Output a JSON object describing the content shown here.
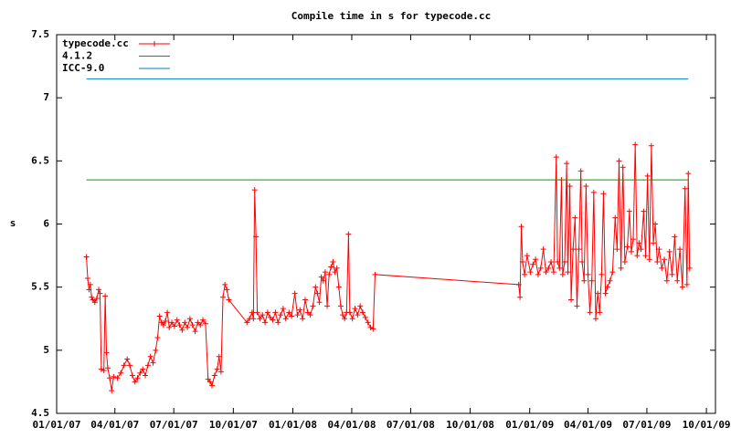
{
  "chart_data": {
    "type": "line",
    "title": "Compile time in s for typecode.cc",
    "y_label": "s",
    "xlim": [
      "2007-01-01",
      "2009-10-15"
    ],
    "ylim": [
      4.5,
      7.5
    ],
    "xticks": [
      {
        "value": "2007-01-01",
        "label": "01/01/07"
      },
      {
        "value": "2007-04-01",
        "label": "04/01/07"
      },
      {
        "value": "2007-07-01",
        "label": "07/01/07"
      },
      {
        "value": "2007-10-01",
        "label": "10/01/07"
      },
      {
        "value": "2008-01-01",
        "label": "01/01/08"
      },
      {
        "value": "2008-04-01",
        "label": "04/01/08"
      },
      {
        "value": "2008-07-01",
        "label": "07/01/08"
      },
      {
        "value": "2008-10-01",
        "label": "10/01/08"
      },
      {
        "value": "2009-01-01",
        "label": "01/01/09"
      },
      {
        "value": "2009-04-01",
        "label": "04/01/09"
      },
      {
        "value": "2009-07-01",
        "label": "07/01/09"
      },
      {
        "value": "2009-10-01",
        "label": "10/01/09"
      }
    ],
    "yticks": [
      4.5,
      5,
      5.5,
      6,
      6.5,
      7,
      7.5
    ],
    "legend": "top-left",
    "series": [
      {
        "name": "typecode.cc",
        "color": "#ff0000",
        "markers": true,
        "x": [
          "2007-02-16",
          "2007-02-18",
          "2007-02-20",
          "2007-02-22",
          "2007-02-24",
          "2007-02-26",
          "2007-03-01",
          "2007-03-04",
          "2007-03-07",
          "2007-03-09",
          "2007-03-11",
          "2007-03-15",
          "2007-03-17",
          "2007-03-19",
          "2007-03-21",
          "2007-03-24",
          "2007-03-27",
          "2007-03-30",
          "2007-04-05",
          "2007-04-10",
          "2007-04-15",
          "2007-04-20",
          "2007-04-24",
          "2007-04-28",
          "2007-05-02",
          "2007-05-06",
          "2007-05-10",
          "2007-05-14",
          "2007-05-18",
          "2007-05-22",
          "2007-05-26",
          "2007-05-30",
          "2007-06-03",
          "2007-06-06",
          "2007-06-09",
          "2007-06-12",
          "2007-06-15",
          "2007-06-18",
          "2007-06-21",
          "2007-06-24",
          "2007-06-28",
          "2007-07-02",
          "2007-07-06",
          "2007-07-10",
          "2007-07-14",
          "2007-07-18",
          "2007-07-22",
          "2007-07-26",
          "2007-07-30",
          "2007-08-03",
          "2007-08-07",
          "2007-08-11",
          "2007-08-15",
          "2007-08-19",
          "2007-08-23",
          "2007-08-26",
          "2007-08-29",
          "2007-09-02",
          "2007-09-06",
          "2007-09-09",
          "2007-09-12",
          "2007-09-15",
          "2007-09-18",
          "2007-09-21",
          "2007-09-24",
          "2007-10-22",
          "2007-10-26",
          "2007-10-30",
          "2007-11-01",
          "2007-11-03",
          "2007-11-05",
          "2007-11-07",
          "2007-11-11",
          "2007-11-15",
          "2007-11-19",
          "2007-11-23",
          "2007-11-27",
          "2007-12-01",
          "2007-12-05",
          "2007-12-09",
          "2007-12-13",
          "2007-12-17",
          "2007-12-21",
          "2007-12-26",
          "2007-12-30",
          "2008-01-04",
          "2008-01-08",
          "2008-01-12",
          "2008-01-16",
          "2008-01-20",
          "2008-01-24",
          "2008-01-28",
          "2008-02-01",
          "2008-02-05",
          "2008-02-08",
          "2008-02-11",
          "2008-02-14",
          "2008-02-17",
          "2008-02-20",
          "2008-02-23",
          "2008-02-26",
          "2008-02-29",
          "2008-03-03",
          "2008-03-06",
          "2008-03-09",
          "2008-03-12",
          "2008-03-15",
          "2008-03-18",
          "2008-03-21",
          "2008-03-24",
          "2008-03-27",
          "2008-03-29",
          "2008-04-02",
          "2008-04-06",
          "2008-04-10",
          "2008-04-14",
          "2008-04-18",
          "2008-04-22",
          "2008-04-26",
          "2008-04-30",
          "2008-05-04",
          "2008-05-07",
          "2008-12-15",
          "2008-12-17",
          "2008-12-19",
          "2008-12-21",
          "2008-12-24",
          "2008-12-28",
          "2009-01-02",
          "2009-01-06",
          "2009-01-10",
          "2009-01-14",
          "2009-01-18",
          "2009-01-22",
          "2009-01-26",
          "2009-01-30",
          "2009-02-03",
          "2009-02-07",
          "2009-02-11",
          "2009-02-13",
          "2009-02-16",
          "2009-02-19",
          "2009-02-21",
          "2009-02-24",
          "2009-02-27",
          "2009-03-01",
          "2009-03-04",
          "2009-03-06",
          "2009-03-09",
          "2009-03-12",
          "2009-03-15",
          "2009-03-18",
          "2009-03-21",
          "2009-03-23",
          "2009-03-26",
          "2009-03-29",
          "2009-04-01",
          "2009-04-04",
          "2009-04-07",
          "2009-04-10",
          "2009-04-13",
          "2009-04-16",
          "2009-04-19",
          "2009-04-22",
          "2009-04-25",
          "2009-04-28",
          "2009-05-01",
          "2009-05-05",
          "2009-05-09",
          "2009-05-13",
          "2009-05-16",
          "2009-05-19",
          "2009-05-22",
          "2009-05-25",
          "2009-05-28",
          "2009-06-01",
          "2009-06-04",
          "2009-06-07",
          "2009-06-10",
          "2009-06-13",
          "2009-06-16",
          "2009-06-19",
          "2009-06-22",
          "2009-06-26",
          "2009-06-29",
          "2009-07-02",
          "2009-07-05",
          "2009-07-08",
          "2009-07-11",
          "2009-07-14",
          "2009-07-17",
          "2009-07-20",
          "2009-07-24",
          "2009-07-28",
          "2009-08-01",
          "2009-08-05",
          "2009-08-09",
          "2009-08-13",
          "2009-08-17",
          "2009-08-21",
          "2009-08-25",
          "2009-08-29",
          "2009-09-01",
          "2009-09-03",
          "2009-09-05"
        ],
        "values": [
          5.74,
          5.57,
          5.48,
          5.52,
          5.42,
          5.4,
          5.38,
          5.41,
          5.48,
          5.45,
          4.85,
          4.84,
          5.43,
          4.98,
          4.86,
          4.78,
          4.68,
          4.79,
          4.78,
          4.82,
          4.88,
          4.93,
          4.88,
          4.8,
          4.75,
          4.78,
          4.82,
          4.85,
          4.8,
          4.88,
          4.95,
          4.9,
          5.0,
          5.1,
          5.27,
          5.22,
          5.2,
          5.23,
          5.3,
          5.18,
          5.22,
          5.19,
          5.24,
          5.2,
          5.16,
          5.22,
          5.18,
          5.25,
          5.2,
          5.15,
          5.22,
          5.2,
          5.24,
          5.21,
          4.77,
          4.75,
          4.72,
          4.8,
          4.85,
          4.95,
          4.83,
          5.42,
          5.52,
          5.48,
          5.4,
          5.22,
          5.25,
          5.3,
          5.25,
          6.27,
          5.9,
          5.3,
          5.25,
          5.28,
          5.22,
          5.3,
          5.26,
          5.24,
          5.3,
          5.22,
          5.28,
          5.33,
          5.25,
          5.3,
          5.27,
          5.45,
          5.28,
          5.32,
          5.25,
          5.4,
          5.3,
          5.28,
          5.35,
          5.5,
          5.45,
          5.38,
          5.58,
          5.55,
          5.62,
          5.35,
          5.6,
          5.66,
          5.7,
          5.62,
          5.65,
          5.5,
          5.35,
          5.28,
          5.25,
          5.3,
          5.92,
          5.3,
          5.25,
          5.33,
          5.28,
          5.35,
          5.3,
          5.26,
          5.22,
          5.18,
          5.17,
          5.6,
          5.52,
          5.42,
          5.98,
          5.7,
          5.6,
          5.75,
          5.62,
          5.68,
          5.72,
          5.6,
          5.65,
          5.8,
          5.62,
          5.65,
          5.7,
          5.62,
          6.53,
          5.7,
          5.65,
          6.35,
          5.6,
          5.7,
          6.48,
          5.62,
          6.3,
          5.4,
          5.8,
          6.05,
          5.35,
          5.8,
          6.42,
          5.7,
          5.55,
          6.3,
          5.6,
          5.3,
          5.55,
          6.25,
          5.25,
          5.45,
          5.3,
          5.6,
          6.24,
          5.45,
          5.5,
          5.55,
          5.62,
          6.05,
          5.8,
          6.5,
          5.65,
          6.45,
          5.7,
          5.82,
          6.1,
          5.78,
          5.88,
          6.63,
          5.75,
          5.85,
          5.8,
          6.1,
          5.75,
          6.38,
          5.72,
          6.62,
          5.85,
          6.0,
          5.7,
          5.8,
          5.65,
          5.72,
          5.55,
          5.78,
          5.6,
          5.9,
          5.55,
          5.8,
          5.5,
          6.28,
          5.52,
          6.4,
          5.65
        ]
      },
      {
        "name": "4.1.2",
        "color": "#00a000",
        "markers": false,
        "x": [
          "2007-02-16",
          "2009-09-03"
        ],
        "values": [
          6.35,
          6.35
        ]
      },
      {
        "name": "ICC-9.0",
        "color": "#0080c0",
        "markers": false,
        "x": [
          "2007-02-16",
          "2009-09-03"
        ],
        "values": [
          7.15,
          7.15
        ]
      }
    ]
  }
}
